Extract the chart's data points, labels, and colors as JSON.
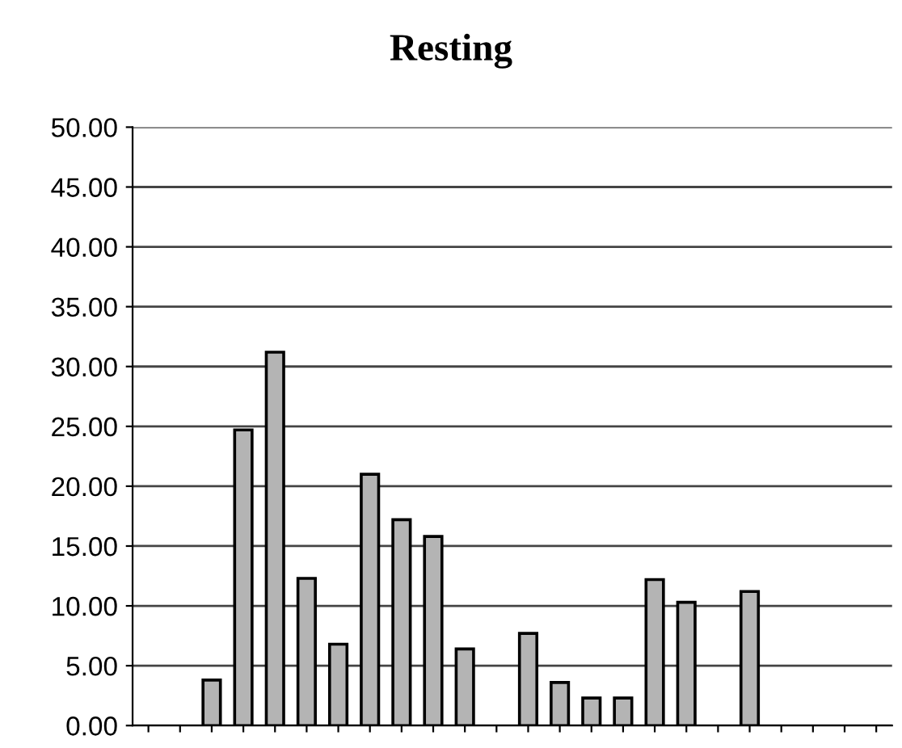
{
  "chart_data": {
    "type": "bar",
    "title": "Resting",
    "categories": [
      null,
      null,
      null,
      null,
      null,
      null,
      null,
      null,
      null,
      null,
      null,
      null,
      null,
      null,
      null,
      null,
      null,
      null,
      null,
      null,
      null,
      null,
      null,
      null
    ],
    "values": [
      null,
      null,
      3.8,
      24.7,
      31.2,
      12.3,
      6.8,
      21.0,
      17.2,
      15.8,
      6.4,
      null,
      7.7,
      3.6,
      2.3,
      2.3,
      12.2,
      10.3,
      null,
      11.2,
      null,
      null,
      null,
      null
    ],
    "color": "#b4b4b4",
    "ylim": [
      0,
      50
    ],
    "yticks": [
      {
        "value": 0,
        "label": "0.00"
      },
      {
        "value": 5,
        "label": "5.00"
      },
      {
        "value": 10,
        "label": "10.00"
      },
      {
        "value": 15,
        "label": "15.00"
      },
      {
        "value": 20,
        "label": "20.00"
      },
      {
        "value": 25,
        "label": "25.00"
      },
      {
        "value": 30,
        "label": "30.00"
      },
      {
        "value": 35,
        "label": "35.00"
      },
      {
        "value": 40,
        "label": "40.00"
      },
      {
        "value": 45,
        "label": "45.00"
      },
      {
        "value": 50,
        "label": "50.00"
      }
    ],
    "grid": "y"
  }
}
